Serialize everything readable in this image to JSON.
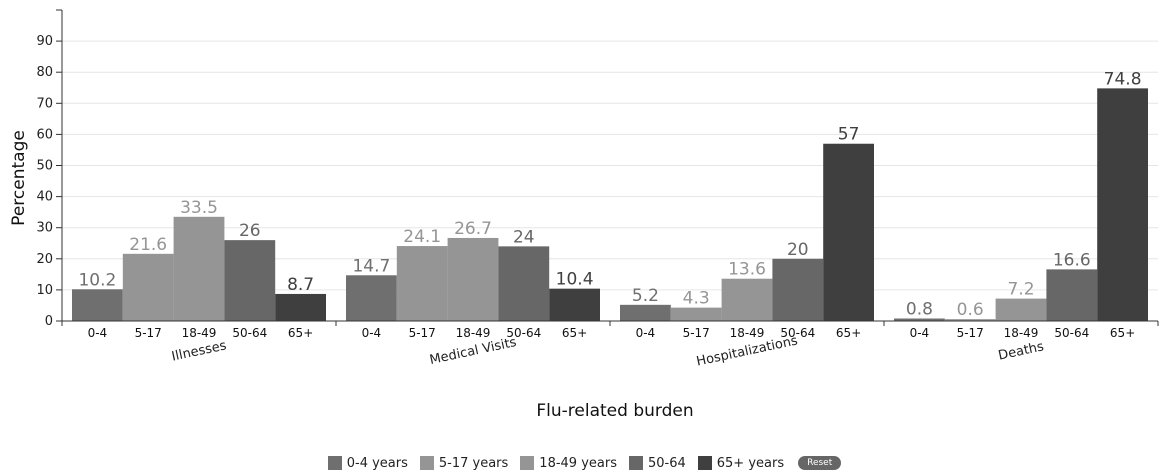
{
  "chart_data": {
    "type": "bar",
    "title": "",
    "xlabel": "Flu-related burden",
    "ylabel": "Percentage",
    "ylim": [
      0,
      100
    ],
    "yticks": [
      0,
      10,
      20,
      30,
      40,
      50,
      60,
      70,
      80,
      90
    ],
    "groups": [
      "Illnesses",
      "Medical Visits",
      "Hospitalizations",
      "Deaths"
    ],
    "categories": [
      "0-4",
      "5-17",
      "18-49",
      "50-64",
      "65+"
    ],
    "series": [
      {
        "name": "Illnesses",
        "values": [
          10.2,
          21.6,
          33.5,
          26,
          8.7
        ]
      },
      {
        "name": "Medical Visits",
        "values": [
          14.7,
          24.1,
          26.7,
          24,
          10.4
        ]
      },
      {
        "name": "Hospitalizations",
        "values": [
          5.2,
          4.3,
          13.6,
          20,
          57
        ]
      },
      {
        "name": "Deaths",
        "values": [
          0.8,
          0.6,
          7.2,
          16.6,
          74.8
        ]
      }
    ],
    "category_colors": [
      "#6f6f6f",
      "#959595",
      "#959595",
      "#676767",
      "#3f3f3f"
    ],
    "label_colors": [
      "#6f6f6f",
      "#959595",
      "#959595",
      "#676767",
      "#3f3f3f"
    ],
    "grid": true,
    "legend_position": "bottom-center"
  },
  "legend": {
    "items": [
      {
        "label": "0-4 years",
        "color": "#6f6f6f"
      },
      {
        "label": "5-17 years",
        "color": "#959595"
      },
      {
        "label": "18-49 years",
        "color": "#959595"
      },
      {
        "label": "50-64",
        "color": "#676767"
      },
      {
        "label": "65+ years",
        "color": "#3f3f3f"
      }
    ],
    "reset_label": "Reset"
  }
}
